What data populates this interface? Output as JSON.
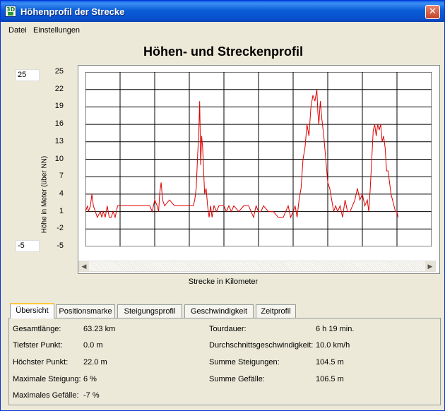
{
  "window": {
    "title": "Höhenprofil der Strecke"
  },
  "menu": {
    "items": [
      "Datei",
      "Einstellungen"
    ]
  },
  "chart_data": {
    "type": "line",
    "title": "Höhen- und Streckenprofil",
    "xlabel": "Strecke in Kilometer",
    "ylabel": "Höhe in Meter (über NN)",
    "xlim": [
      0,
      70
    ],
    "ylim": [
      -5,
      25
    ],
    "xticks": [
      "0",
      "7",
      "14",
      "21",
      "28",
      "35",
      "42",
      "49",
      "56",
      "63",
      "70"
    ],
    "yticks": [
      "25",
      "22",
      "19",
      "16",
      "13",
      "10",
      "7",
      "4",
      "1",
      "-2",
      "-5"
    ],
    "grid": true,
    "color": "#dd0000",
    "x": [
      0,
      0.4,
      0.6,
      1.0,
      1.3,
      1.6,
      2.0,
      2.4,
      3.0,
      3.3,
      3.6,
      4.0,
      4.4,
      4.8,
      5.2,
      5.6,
      6.0,
      6.5,
      7.0,
      8.0,
      9.0,
      10.0,
      11.0,
      11.5,
      12.0,
      13.0,
      13.5,
      14.0,
      14.5,
      14.8,
      15.0,
      15.3,
      15.6,
      16.0,
      17.0,
      18.0,
      19.0,
      20.0,
      21.0,
      21.8,
      22.1,
      22.4,
      22.7,
      22.9,
      23.1,
      23.3,
      23.5,
      23.7,
      23.9,
      24.1,
      24.4,
      24.7,
      25.0,
      25.3,
      25.6,
      26.0,
      26.5,
      27.0,
      27.5,
      28.0,
      28.5,
      29.0,
      29.5,
      30.0,
      31.0,
      32.0,
      33.0,
      33.5,
      34.0,
      34.5,
      35.0,
      35.5,
      36.0,
      37.0,
      38.0,
      39.0,
      39.5,
      40.0,
      40.5,
      41.0,
      41.5,
      42.0,
      42.4,
      42.8,
      43.2,
      43.6,
      44.0,
      44.4,
      44.8,
      45.2,
      45.6,
      46.0,
      46.4,
      46.8,
      47.0,
      47.2,
      47.5,
      47.8,
      48.2,
      48.6,
      49.0,
      49.4,
      49.8,
      50.2,
      50.6,
      51.0,
      51.5,
      52.0,
      52.5,
      53.0,
      53.5,
      54.0,
      54.5,
      55.0,
      55.5,
      56.0,
      56.5,
      57.0,
      57.3,
      57.6,
      57.9,
      58.2,
      58.5,
      58.8,
      59.1,
      59.4,
      59.7,
      60.0,
      60.3,
      60.6,
      60.9,
      61.2,
      61.5,
      61.8,
      62.1,
      62.4,
      62.7,
      63.0,
      63.23
    ],
    "values": [
      1,
      2,
      1,
      2,
      4,
      2,
      1,
      0,
      1,
      0,
      1,
      0,
      2,
      0,
      0,
      1,
      0,
      2,
      2,
      2,
      2,
      2,
      2,
      2,
      2,
      2,
      1,
      3,
      2,
      1,
      4,
      6,
      3,
      2,
      3,
      2,
      2,
      2,
      2,
      2,
      3,
      5,
      11,
      14,
      20,
      9,
      14,
      12,
      8,
      4,
      5,
      2,
      0,
      2,
      0,
      2,
      1,
      2,
      2,
      2,
      1,
      2,
      1,
      2,
      1,
      2,
      2,
      1,
      0,
      2,
      1,
      1,
      2,
      1,
      1,
      0,
      0,
      0,
      1,
      2,
      0,
      1,
      2,
      0,
      3,
      5,
      10,
      12,
      16,
      14,
      19,
      21,
      20,
      22,
      18,
      16,
      20,
      17,
      14,
      10,
      6,
      5,
      3,
      1,
      2,
      1,
      2,
      0,
      3,
      1,
      1,
      2,
      3,
      5,
      3,
      4,
      2,
      3,
      1,
      5,
      10,
      15,
      16,
      14,
      16,
      15,
      16,
      13,
      14,
      12,
      8,
      8,
      6,
      4,
      3,
      2,
      1,
      1,
      0
    ]
  },
  "controls": {
    "y_max": "25",
    "y_min": "-5"
  },
  "tabs": [
    "Übersicht",
    "Positionsmarke",
    "Steigungsprofil",
    "Geschwindigkeit",
    "Zeitprofil"
  ],
  "stats": {
    "left": [
      {
        "label": "Gesamtlänge:",
        "value": "63.23 km"
      },
      {
        "label": "Tiefster Punkt:",
        "value": "0.0 m"
      },
      {
        "label": "Höchster Punkt:",
        "value": "22.0 m"
      },
      {
        "label": "Maximale Steigung:",
        "value": "6 %"
      },
      {
        "label": "Maximales Gefälle:",
        "value": "-7 %"
      }
    ],
    "right": [
      {
        "label": "Tourdauer:",
        "value": "6 h 19 min."
      },
      {
        "label": "Durchschnittsgeschwindigkeit:",
        "value": "10.0 km/h"
      },
      {
        "label": "Summe Steigungen:",
        "value": "104.5 m"
      },
      {
        "label": "Summe Gefälle:",
        "value": "106.5 m"
      }
    ]
  }
}
